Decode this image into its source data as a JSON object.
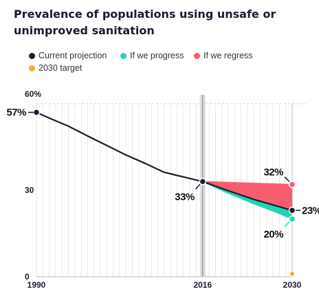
{
  "title": "Prevalence of populations using unsafe or unimproved sanitation",
  "legend": [
    {
      "label": "Current projection",
      "color": "#1b1b2f",
      "icon": "dot-icon"
    },
    {
      "label": "If we progress",
      "color": "#21d4b4",
      "icon": "dot-icon"
    },
    {
      "label": "If we regress",
      "color": "#f85c6f",
      "icon": "dot-icon"
    },
    {
      "label": "2030 target",
      "color": "#f7a93b",
      "icon": "dot-icon"
    }
  ],
  "chart_data": {
    "type": "line",
    "title": "Prevalence of populations using unsafe or unimproved sanitation",
    "xlabel": "",
    "ylabel": "",
    "xlim": [
      1990,
      2030
    ],
    "ylim": [
      0,
      60
    ],
    "x_ticks": [
      "1990",
      "2016",
      "2030"
    ],
    "y_ticks": [
      {
        "value": 0,
        "label": "0"
      },
      {
        "value": 30,
        "label": "30"
      },
      {
        "value": 60,
        "label": "60%"
      }
    ],
    "highlight_year": 2016,
    "series": [
      {
        "name": "Current projection",
        "color": "#1b1b2f",
        "x": [
          1990,
          1992,
          1995,
          1998,
          2001,
          2004,
          2007,
          2010,
          2013,
          2016,
          2020,
          2024,
          2027,
          2030
        ],
        "y": [
          57,
          55,
          52.2,
          48.8,
          45.5,
          42.2,
          39.3,
          36.2,
          34.6,
          33,
          29.8,
          26.8,
          24.9,
          23
        ]
      },
      {
        "name": "If we progress",
        "color": "#21d4b4",
        "x": [
          2016,
          2020,
          2024,
          2027,
          2030
        ],
        "y": [
          33,
          28.9,
          25.3,
          22.8,
          20
        ]
      },
      {
        "name": "If we regress",
        "color": "#f85c6f",
        "x": [
          2016,
          2020,
          2024,
          2027,
          2030
        ],
        "y": [
          33,
          32.7,
          32.4,
          32.2,
          32
        ]
      },
      {
        "name": "2030 target",
        "color": "#f7a93b",
        "x": [
          2030
        ],
        "y": [
          1
        ]
      }
    ],
    "annotations": [
      {
        "label": "57%",
        "x": 1990,
        "y": 57
      },
      {
        "label": "33%",
        "x": 2016,
        "y": 33
      },
      {
        "label": "32%",
        "x": 2030,
        "y": 32
      },
      {
        "label": "23%",
        "x": 2030,
        "y": 23
      },
      {
        "label": "20%",
        "x": 2030,
        "y": 20
      }
    ],
    "grid": true,
    "legend_position": "top-left"
  }
}
